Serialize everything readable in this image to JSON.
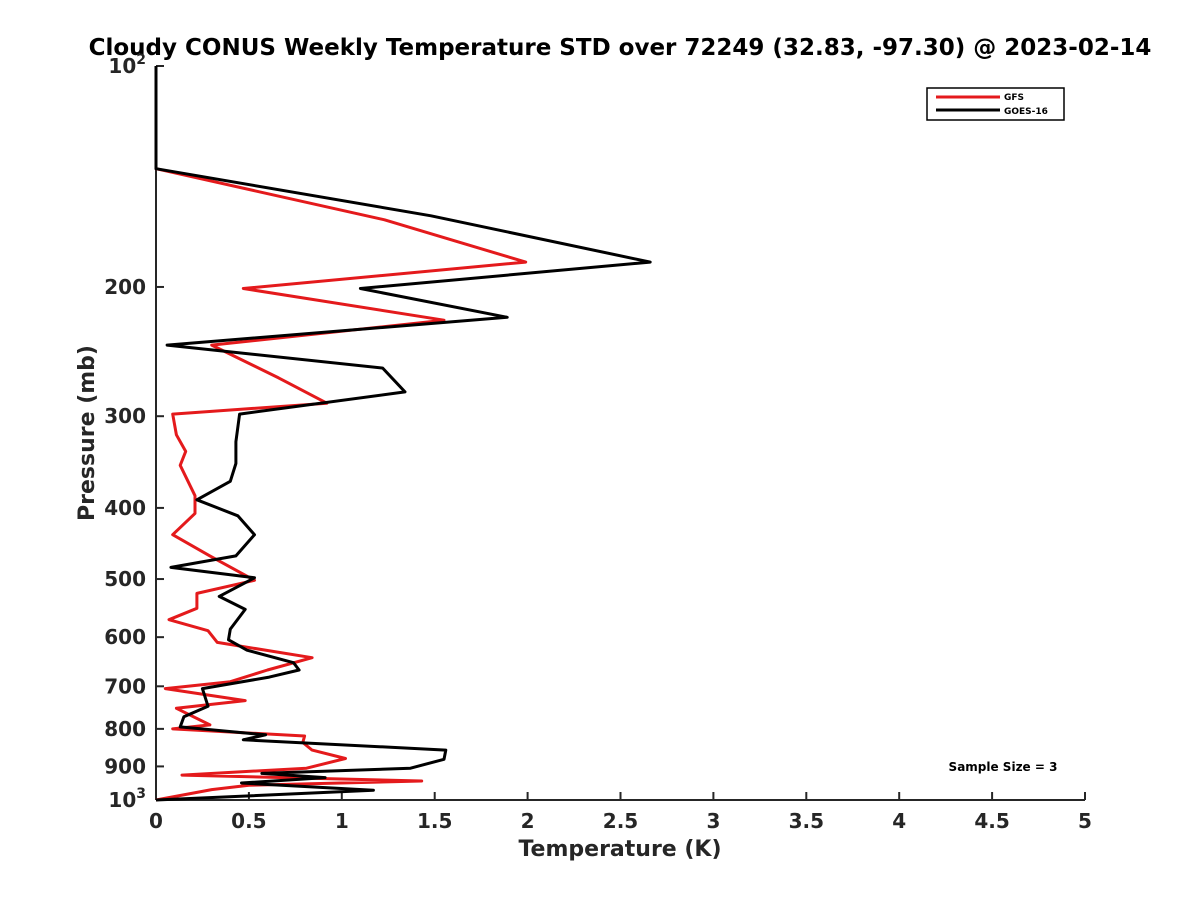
{
  "chart_data": {
    "type": "line",
    "title": "Cloudy CONUS Weekly Temperature STD over 72249 (32.83, -97.30) @ 2023-02-14",
    "xlabel": "Temperature (K)",
    "ylabel": "Pressure (mb)",
    "xlim": [
      0,
      5
    ],
    "ylim": [
      100,
      1000
    ],
    "y_scale": "log",
    "y_reversed": true,
    "grid": false,
    "legend_position": "top-right",
    "x_ticks": [
      "0",
      "0.5",
      "1",
      "1.5",
      "2",
      "2.5",
      "3",
      "3.5",
      "4",
      "4.5",
      "5"
    ],
    "y_ticks": [
      {
        "value": 200,
        "label": "200"
      },
      {
        "value": 300,
        "label": "300"
      },
      {
        "value": 400,
        "label": "400"
      },
      {
        "value": 500,
        "label": "500"
      },
      {
        "value": 600,
        "label": "600"
      },
      {
        "value": 700,
        "label": "700"
      },
      {
        "value": 800,
        "label": "800"
      },
      {
        "value": 900,
        "label": "900"
      }
    ],
    "y_tick_top": {
      "base": "10",
      "exp": "2",
      "value": 100
    },
    "y_tick_bottom": {
      "base": "10",
      "exp": "3",
      "value": 1000
    },
    "annotation": "Sample Size = 3",
    "series": [
      {
        "name": "GFS",
        "color": "#e41a1c",
        "x": [
          0,
          0,
          1.23,
          1.99,
          0.47,
          1.55,
          0.3,
          0.66,
          0.92,
          0.09,
          0.11,
          0.16,
          0.13,
          0.21,
          0.21,
          0.09,
          0.29,
          0.53,
          0.22,
          0.22,
          0.07,
          0.28,
          0.33,
          0.84,
          0.6,
          0.4,
          0.05,
          0.48,
          0.11,
          0.29,
          0.09,
          0.8,
          0.79,
          0.84,
          1.02,
          0.81,
          0.14,
          1.43,
          0.5,
          0.3,
          0
        ],
        "y": [
          100,
          138,
          162,
          185,
          201,
          222,
          240,
          266,
          288,
          298,
          318,
          335,
          350,
          385,
          407,
          435,
          465,
          502,
          523,
          548,
          568,
          588,
          610,
          640,
          665,
          690,
          705,
          732,
          750,
          790,
          800,
          818,
          835,
          855,
          878,
          905,
          925,
          942,
          955,
          968,
          1000
        ]
      },
      {
        "name": "GOES-16",
        "color": "#000000",
        "x": [
          0,
          0,
          1.48,
          2.66,
          1.1,
          1.89,
          0.06,
          1.22,
          1.34,
          0.45,
          0.43,
          0.43,
          0.4,
          0.22,
          0.44,
          0.53,
          0.43,
          0.08,
          0.53,
          0.34,
          0.48,
          0.4,
          0.39,
          0.49,
          0.74,
          0.77,
          0.61,
          0.25,
          0.28,
          0.15,
          0.13,
          0.59,
          0.47,
          1.56,
          1.55,
          1.37,
          0.57,
          0.91,
          0.46,
          1.17,
          0
        ],
        "y": [
          100,
          138,
          160,
          185,
          201,
          220,
          240,
          258,
          278,
          298,
          325,
          348,
          368,
          390,
          410,
          435,
          465,
          482,
          498,
          528,
          550,
          585,
          605,
          625,
          650,
          665,
          680,
          705,
          745,
          770,
          795,
          815,
          828,
          855,
          880,
          905,
          920,
          932,
          948,
          970,
          1000
        ]
      }
    ]
  }
}
